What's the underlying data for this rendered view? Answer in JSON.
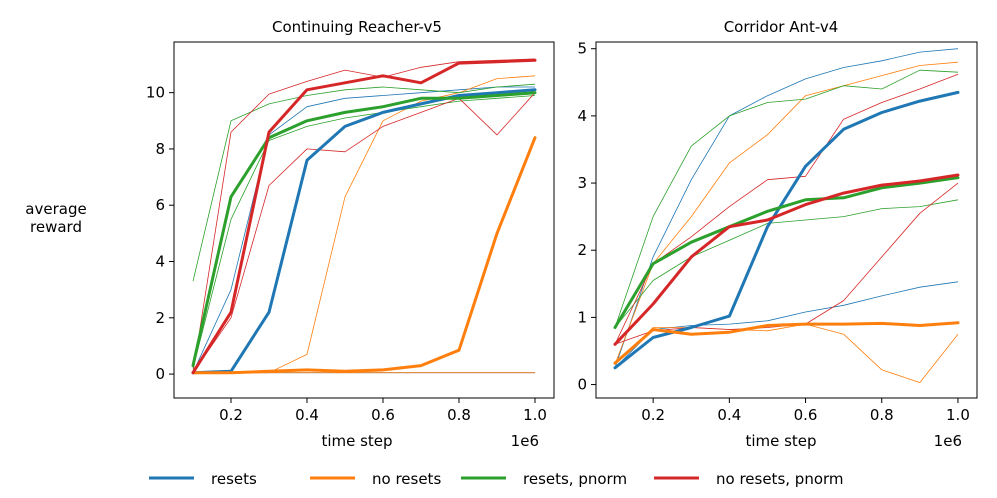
{
  "figure": {
    "ylabel_line1": "average",
    "ylabel_line2": "reward",
    "xlabel": "time step",
    "x_exponent_label": "1e6"
  },
  "colors": {
    "resets": "#1f77b4",
    "no_resets": "#ff7f0e",
    "resets_pnorm": "#2ca02c",
    "no_resets_pnorm": "#d62728"
  },
  "legend": [
    {
      "key": "resets",
      "label": "resets"
    },
    {
      "key": "no_resets",
      "label": "no resets"
    },
    {
      "key": "resets_pnorm",
      "label": "resets, pnorm"
    },
    {
      "key": "no_resets_pnorm",
      "label": "no resets, pnorm"
    }
  ],
  "chart_data": [
    {
      "type": "line",
      "title": "Continuing Reacher-v5",
      "xlabel": "time step",
      "ylabel": "average reward",
      "xlim": [
        0.05,
        1.05
      ],
      "ylim": [
        -0.85,
        11.8
      ],
      "xticks": [
        0.2,
        0.4,
        0.6,
        0.8,
        1.0
      ],
      "xtick_labels": [
        "0.2",
        "0.4",
        "0.6",
        "0.8",
        "1.0"
      ],
      "yticks": [
        0,
        2,
        4,
        6,
        8,
        10
      ],
      "ytick_labels": [
        "0",
        "2",
        "4",
        "6",
        "8",
        "10"
      ],
      "x": [
        0.1,
        0.2,
        0.3,
        0.4,
        0.5,
        0.6,
        0.7,
        0.8,
        0.9,
        1.0
      ],
      "series": [
        {
          "key": "resets",
          "name": "resets",
          "values": [
            0.05,
            0.1,
            2.2,
            7.6,
            8.8,
            9.3,
            9.6,
            9.9,
            10.0,
            10.1
          ],
          "runs": [
            [
              0.05,
              0.05,
              0.05,
              0.05,
              0.05,
              0.05,
              0.05,
              0.05,
              0.05,
              0.05
            ],
            [
              0.05,
              3.0,
              8.5,
              9.5,
              9.8,
              9.9,
              10.0,
              10.1,
              10.2,
              10.2
            ]
          ]
        },
        {
          "key": "no_resets",
          "name": "no resets",
          "values": [
            0.05,
            0.05,
            0.1,
            0.15,
            0.1,
            0.15,
            0.3,
            0.85,
            5.0,
            8.4
          ],
          "runs": [
            [
              0.05,
              0.05,
              0.05,
              0.7,
              6.3,
              9.0,
              9.7,
              10.0,
              10.5,
              10.6
            ],
            [
              0.05,
              0.05,
              0.05,
              0.05,
              0.05,
              0.05,
              0.05,
              0.05,
              0.05,
              0.05
            ]
          ]
        },
        {
          "key": "resets_pnorm",
          "name": "resets, pnorm",
          "values": [
            0.3,
            6.3,
            8.4,
            9.0,
            9.3,
            9.5,
            9.8,
            9.8,
            9.9,
            10.0
          ],
          "runs": [
            [
              3.3,
              9.0,
              9.6,
              9.9,
              10.1,
              10.2,
              10.1,
              10.0,
              10.2,
              10.3
            ],
            [
              0.2,
              5.5,
              8.3,
              8.8,
              9.1,
              9.3,
              9.5,
              9.7,
              9.8,
              9.9
            ]
          ]
        },
        {
          "key": "no_resets_pnorm",
          "name": "no resets, pnorm",
          "values": [
            0.05,
            2.2,
            8.6,
            10.1,
            10.35,
            10.6,
            10.35,
            11.05,
            11.1,
            11.15
          ],
          "runs": [
            [
              0.05,
              8.6,
              9.95,
              10.4,
              10.8,
              10.55,
              10.9,
              11.1,
              11.15,
              11.2
            ],
            [
              0.05,
              2.0,
              6.7,
              8.0,
              7.9,
              8.8,
              9.3,
              9.8,
              8.5,
              10.0
            ]
          ]
        }
      ]
    },
    {
      "type": "line",
      "title": "Corridor Ant-v4",
      "xlabel": "time step",
      "ylabel": "average reward",
      "xlim": [
        0.05,
        1.05
      ],
      "ylim": [
        -0.2,
        5.1
      ],
      "xticks": [
        0.2,
        0.4,
        0.6,
        0.8,
        1.0
      ],
      "xtick_labels": [
        "0.2",
        "0.4",
        "0.6",
        "0.8",
        "1.0"
      ],
      "yticks": [
        0,
        1,
        2,
        3,
        4,
        5
      ],
      "ytick_labels": [
        "0",
        "1",
        "2",
        "3",
        "4",
        "5"
      ],
      "x": [
        0.1,
        0.2,
        0.3,
        0.4,
        0.5,
        0.6,
        0.7,
        0.8,
        0.9,
        1.0
      ],
      "series": [
        {
          "key": "resets",
          "name": "resets",
          "values": [
            0.25,
            0.7,
            0.85,
            1.02,
            2.35,
            3.25,
            3.8,
            4.05,
            4.22,
            4.35
          ],
          "runs": [
            [
              0.25,
              1.9,
              3.05,
              4.0,
              4.3,
              4.55,
              4.72,
              4.82,
              4.95,
              5.0
            ],
            [
              0.25,
              0.82,
              0.88,
              0.9,
              0.95,
              1.08,
              1.18,
              1.32,
              1.45,
              1.53
            ]
          ]
        },
        {
          "key": "no_resets",
          "name": "no resets",
          "values": [
            0.32,
            0.82,
            0.75,
            0.78,
            0.88,
            0.9,
            0.9,
            0.91,
            0.88,
            0.92
          ],
          "runs": [
            [
              0.3,
              1.8,
              2.5,
              3.3,
              3.72,
              4.3,
              4.45,
              4.6,
              4.75,
              4.8
            ],
            [
              0.3,
              0.85,
              0.85,
              0.82,
              0.8,
              0.9,
              0.75,
              0.22,
              0.03,
              0.75
            ]
          ]
        },
        {
          "key": "resets_pnorm",
          "name": "resets, pnorm",
          "values": [
            0.85,
            1.8,
            2.12,
            2.35,
            2.58,
            2.75,
            2.78,
            2.93,
            3.0,
            3.08
          ],
          "runs": [
            [
              0.85,
              2.5,
              3.55,
              4.0,
              4.2,
              4.25,
              4.45,
              4.4,
              4.68,
              4.65
            ],
            [
              0.85,
              1.55,
              1.9,
              2.15,
              2.4,
              2.45,
              2.5,
              2.62,
              2.65,
              2.75
            ]
          ]
        },
        {
          "key": "no_resets_pnorm",
          "name": "no resets, pnorm",
          "values": [
            0.6,
            1.2,
            1.9,
            2.35,
            2.45,
            2.68,
            2.85,
            2.97,
            3.03,
            3.12
          ],
          "runs": [
            [
              0.6,
              1.8,
              2.2,
              2.65,
              3.05,
              3.1,
              3.95,
              4.2,
              4.4,
              4.62
            ],
            [
              0.6,
              0.8,
              0.85,
              0.82,
              0.85,
              0.9,
              1.25,
              1.9,
              2.55,
              3.0
            ]
          ]
        }
      ]
    }
  ]
}
